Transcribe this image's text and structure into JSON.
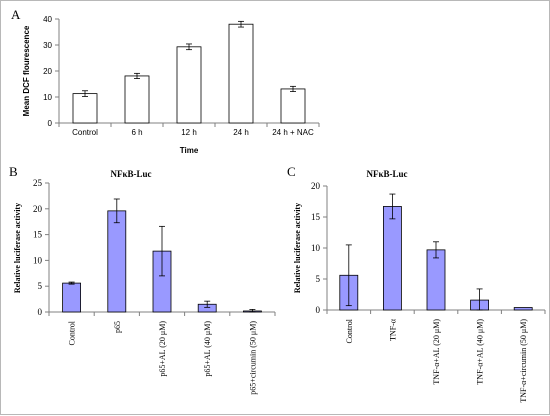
{
  "figure": {
    "colors": {
      "border": "#b8b8b8",
      "axis": "#808080",
      "bar_outline": "#000000",
      "bar_a_fill": "#ffffff",
      "bar_bc_fill": "#9999ff"
    }
  },
  "chart_data": [
    {
      "panel": "A",
      "type": "bar",
      "title": "",
      "xlabel": "Time",
      "ylabel": "Mean DCF flourescence",
      "ylim": [
        0,
        40
      ],
      "yticks": [
        0,
        10,
        20,
        30,
        40
      ],
      "categories": [
        "Control",
        "6 h",
        "12 h",
        "24 h",
        "24 h + NAC"
      ],
      "values": [
        11.3,
        18.1,
        29.3,
        38,
        13.1
      ],
      "errors": [
        1.1,
        1,
        1.1,
        1.1,
        1
      ]
    },
    {
      "panel": "B",
      "type": "bar",
      "title": "NFκB-Luc",
      "xlabel": "",
      "ylabel": "Relative luciferase activity",
      "ylim": [
        0,
        25
      ],
      "yticks": [
        0,
        5,
        10,
        15,
        20,
        25
      ],
      "categories": [
        "Control",
        "p65",
        "p65+AL (20 μM)",
        "p65+AL (40 μM)",
        "p65+circumin (50 μM)"
      ],
      "values": [
        5.6,
        19.6,
        11.8,
        1.5,
        0.2
      ],
      "errors": [
        0.2,
        2.3,
        4.8,
        0.6,
        0.3
      ]
    },
    {
      "panel": "C",
      "type": "bar",
      "title": "NFκB-Luc",
      "xlabel": "",
      "ylabel": "Relative luciferase activity",
      "ylim": [
        0,
        20
      ],
      "yticks": [
        0,
        5,
        10,
        15,
        20
      ],
      "categories": [
        "Control",
        "TNF-α",
        "TNF-α+AL (20 μM)",
        "TNF-α+AL (40 μM)",
        "TNF-α+circumin (50 μM)"
      ],
      "values": [
        5.6,
        16.7,
        9.7,
        1.6,
        0.4
      ],
      "errors": [
        4.9,
        2,
        1.3,
        1.8,
        0
      ]
    }
  ]
}
